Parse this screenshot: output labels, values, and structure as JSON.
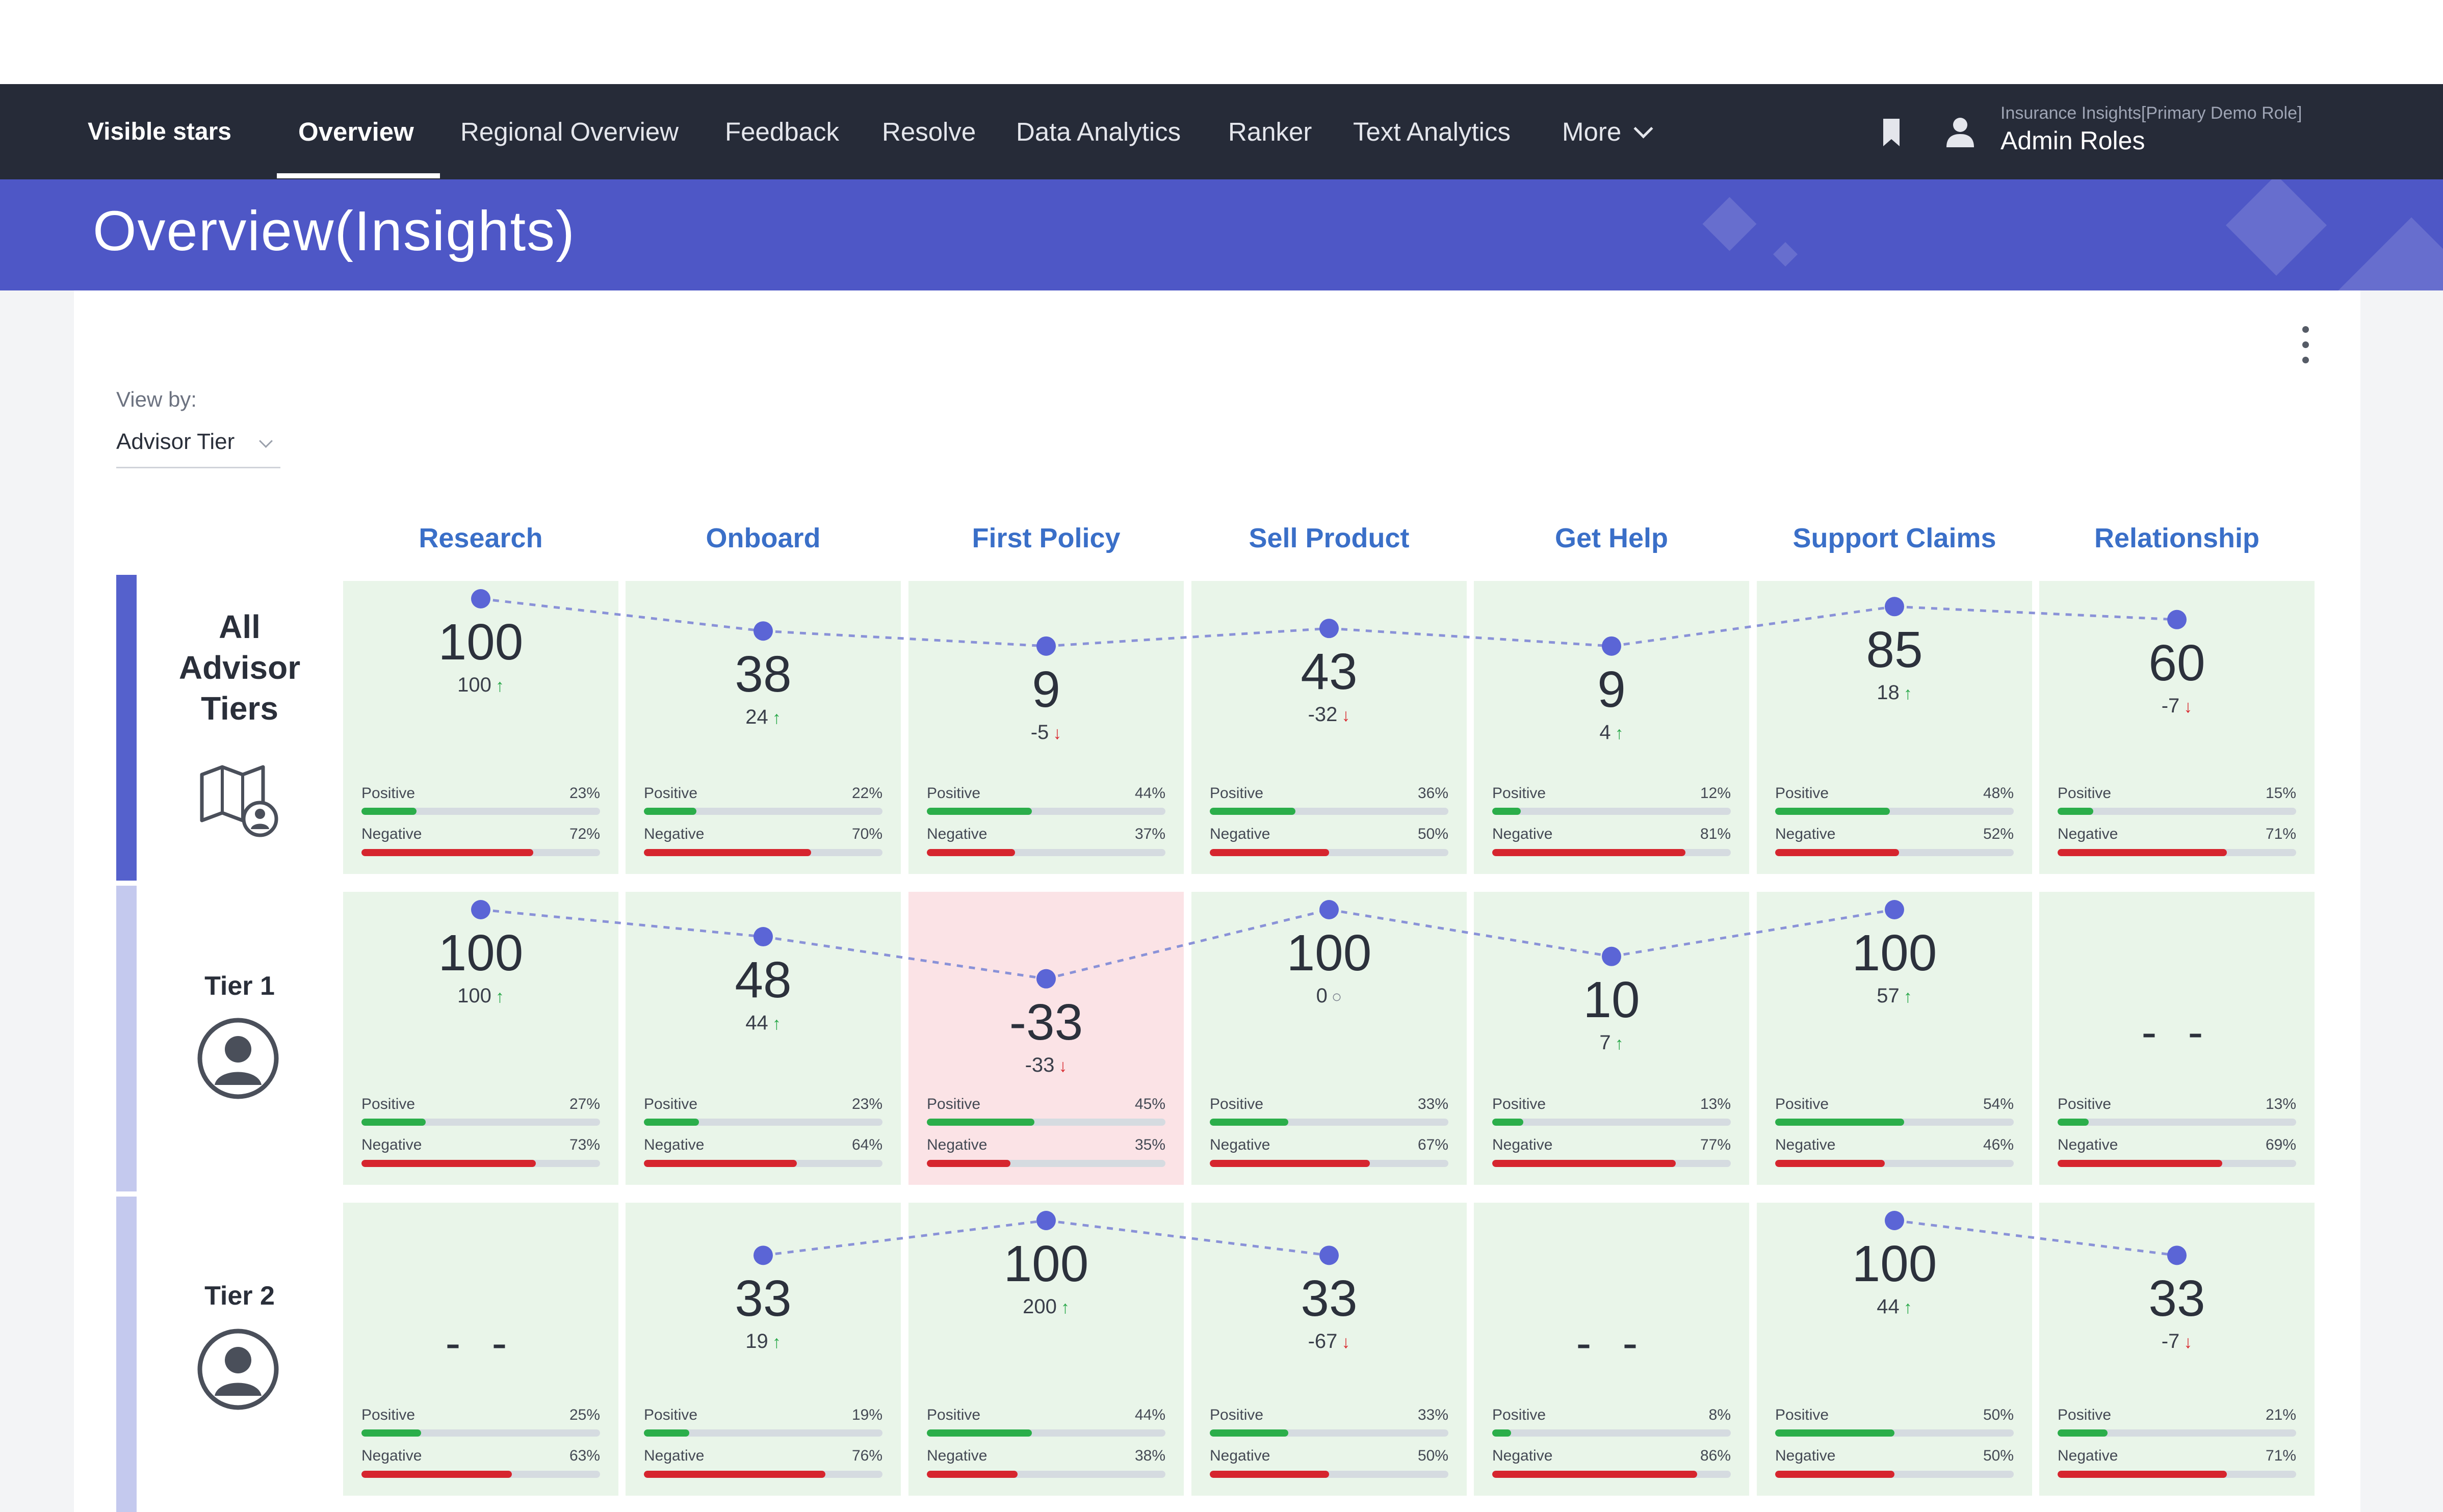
{
  "nav": {
    "brand": "Visible stars",
    "items": [
      {
        "label": "Overview",
        "active": true
      },
      {
        "label": "Regional Overview"
      },
      {
        "label": "Feedback"
      },
      {
        "label": "Resolve"
      },
      {
        "label": "Data Analytics"
      },
      {
        "label": "Ranker"
      },
      {
        "label": "Text Analytics"
      },
      {
        "label": "More"
      }
    ],
    "icons": [
      "bookmark-icon",
      "user-icon",
      "chevron-down-icon"
    ],
    "role_sub": "Insurance Insights[Primary Demo Role]",
    "role_main": "Admin Roles"
  },
  "page": {
    "title": "Overview(Insights)",
    "view_by_label": "View by:",
    "view_by_value": "Advisor Tier"
  },
  "colors": {
    "nav": "#262b38",
    "band": "#4e57c6",
    "header_text": "#3a6fc8",
    "cell_good": "#e9f5e9",
    "cell_bad": "#fbe3e6",
    "positive": "#2bae4a",
    "negative": "#d6252e",
    "dot": "#5b65d6"
  },
  "columns": [
    "Research",
    "Onboard",
    "First Policy",
    "Sell Product",
    "Get Help",
    "Support Claims",
    "Relationship"
  ],
  "positive_label": "Positive",
  "negative_label": "Negative",
  "empty_score": "- -",
  "rows": [
    {
      "label": "All Advisor Tiers",
      "label_lines": [
        "All",
        "Advisor",
        "Tiers"
      ],
      "icon": "map-user-icon",
      "cells": [
        {
          "score": "100",
          "delta": "100",
          "dir": "up",
          "pos": "23%",
          "neg": "72%"
        },
        {
          "score": "38",
          "delta": "24",
          "dir": "up",
          "pos": "22%",
          "neg": "70%"
        },
        {
          "score": "9",
          "delta": "-5",
          "dir": "down",
          "pos": "44%",
          "neg": "37%"
        },
        {
          "score": "43",
          "delta": "-32",
          "dir": "down",
          "pos": "36%",
          "neg": "50%"
        },
        {
          "score": "9",
          "delta": "4",
          "dir": "up",
          "pos": "12%",
          "neg": "81%"
        },
        {
          "score": "85",
          "delta": "18",
          "dir": "up",
          "pos": "48%",
          "neg": "52%"
        },
        {
          "score": "60",
          "delta": "-7",
          "dir": "down",
          "pos": "15%",
          "neg": "71%"
        }
      ]
    },
    {
      "label": "Tier 1",
      "icon": "avatar-icon",
      "cells": [
        {
          "score": "100",
          "delta": "100",
          "dir": "up",
          "pos": "27%",
          "neg": "73%"
        },
        {
          "score": "48",
          "delta": "44",
          "dir": "up",
          "pos": "23%",
          "neg": "64%"
        },
        {
          "score": "-33",
          "delta": "-33",
          "dir": "down",
          "pos": "45%",
          "neg": "35%",
          "highlight": "negative"
        },
        {
          "score": "100",
          "delta": "0",
          "dir": "flat",
          "pos": "33%",
          "neg": "67%"
        },
        {
          "score": "10",
          "delta": "7",
          "dir": "up",
          "pos": "13%",
          "neg": "77%"
        },
        {
          "score": "100",
          "delta": "57",
          "dir": "up",
          "pos": "54%",
          "neg": "46%"
        },
        {
          "score": null,
          "pos": "13%",
          "neg": "69%"
        }
      ]
    },
    {
      "label": "Tier 2",
      "icon": "avatar-icon",
      "cells": [
        {
          "score": null,
          "pos": "25%",
          "neg": "63%"
        },
        {
          "score": "33",
          "delta": "19",
          "dir": "up",
          "pos": "19%",
          "neg": "76%"
        },
        {
          "score": "100",
          "delta": "200",
          "dir": "up",
          "pos": "44%",
          "neg": "38%"
        },
        {
          "score": "33",
          "delta": "-67",
          "dir": "down",
          "pos": "33%",
          "neg": "50%"
        },
        {
          "score": null,
          "pos": "8%",
          "neg": "86%"
        },
        {
          "score": "100",
          "delta": "44",
          "dir": "up",
          "pos": "50%",
          "neg": "50%"
        },
        {
          "score": "33",
          "delta": "-7",
          "dir": "down",
          "pos": "21%",
          "neg": "71%"
        }
      ]
    }
  ]
}
